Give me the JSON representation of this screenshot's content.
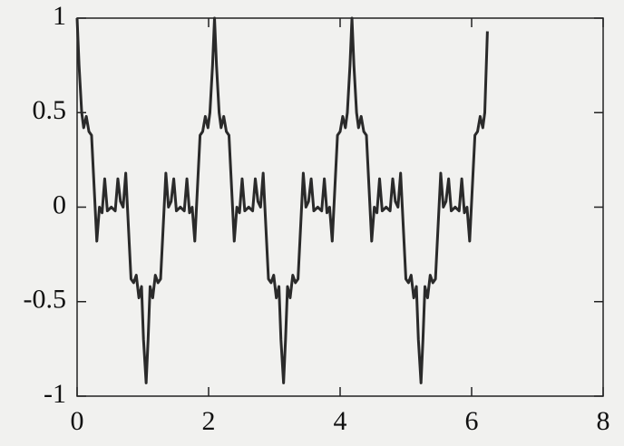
{
  "chart_data": {
    "type": "line",
    "x": [
      0,
      0.03,
      0.07,
      0.1,
      0.14,
      0.18,
      0.22,
      0.26,
      0.3,
      0.34,
      0.38,
      0.42,
      0.46,
      0.52,
      0.58,
      0.62,
      0.66,
      0.7,
      0.74,
      0.78,
      0.82,
      0.86,
      0.9,
      0.94,
      0.98,
      1.01,
      1.05,
      1.08,
      1.11,
      1.15,
      1.19,
      1.23,
      1.27,
      1.31,
      1.35,
      1.39,
      1.43,
      1.47,
      1.51,
      1.57,
      1.63,
      1.67,
      1.71,
      1.75,
      1.79,
      1.83,
      1.87,
      1.91,
      1.95,
      1.99,
      2.02,
      2.06,
      2.09,
      2.12,
      2.16,
      2.19,
      2.23,
      2.27,
      2.31,
      2.35,
      2.39,
      2.43,
      2.47,
      2.51,
      2.55,
      2.61,
      2.67,
      2.71,
      2.75,
      2.79,
      2.83,
      2.87,
      2.91,
      2.95,
      2.99,
      3.03,
      3.07,
      3.1,
      3.14,
      3.17,
      3.2,
      3.24,
      3.28,
      3.32,
      3.36,
      3.4,
      3.44,
      3.48,
      3.52,
      3.56,
      3.6,
      3.66,
      3.72,
      3.76,
      3.8,
      3.84,
      3.88,
      3.92,
      3.96,
      4.0,
      4.04,
      4.08,
      4.11,
      4.15,
      4.18,
      4.21,
      4.25,
      4.28,
      4.32,
      4.36,
      4.4,
      4.44,
      4.48,
      4.52,
      4.56,
      4.6,
      4.64,
      4.7,
      4.76,
      4.8,
      4.84,
      4.88,
      4.92,
      4.96,
      5.0,
      5.04,
      5.08,
      5.12,
      5.16,
      5.19,
      5.23,
      5.26,
      5.29,
      5.33,
      5.37,
      5.41,
      5.45,
      5.49,
      5.53,
      5.57,
      5.61,
      5.65,
      5.69,
      5.75,
      5.81,
      5.85,
      5.89,
      5.93,
      5.97,
      6.01,
      6.05,
      6.09,
      6.13,
      6.17,
      6.2,
      6.24
    ],
    "values": [
      1,
      0.75,
      0.5,
      0.42,
      0.48,
      0.4,
      0.38,
      0.1,
      -0.18,
      0,
      -0.03,
      0.15,
      -0.02,
      0,
      -0.02,
      0.15,
      0.03,
      0,
      0.18,
      -0.1,
      -0.38,
      -0.4,
      -0.36,
      -0.48,
      -0.42,
      -0.7,
      -0.93,
      -0.7,
      -0.42,
      -0.48,
      -0.36,
      -0.4,
      -0.38,
      -0.1,
      0.18,
      0,
      0.03,
      0.15,
      -0.02,
      0,
      -0.02,
      0.15,
      -0.03,
      0,
      -0.18,
      0.1,
      0.38,
      0.4,
      0.48,
      0.42,
      0.5,
      0.75,
      1,
      0.75,
      0.5,
      0.42,
      0.48,
      0.4,
      0.38,
      0.1,
      -0.18,
      0,
      -0.03,
      0.15,
      -0.02,
      0,
      -0.02,
      0.15,
      0.03,
      0,
      0.18,
      -0.1,
      -0.38,
      -0.4,
      -0.36,
      -0.48,
      -0.42,
      -0.7,
      -0.93,
      -0.7,
      -0.42,
      -0.48,
      -0.36,
      -0.4,
      -0.38,
      -0.1,
      0.18,
      0,
      0.03,
      0.15,
      -0.02,
      0,
      -0.02,
      0.15,
      -0.03,
      0,
      -0.18,
      0.1,
      0.38,
      0.4,
      0.48,
      0.42,
      0.5,
      0.75,
      1,
      0.75,
      0.5,
      0.42,
      0.48,
      0.4,
      0.38,
      0.1,
      -0.18,
      0,
      -0.03,
      0.15,
      -0.02,
      0,
      -0.02,
      0.15,
      0.03,
      0,
      0.18,
      -0.1,
      -0.38,
      -0.4,
      -0.36,
      -0.48,
      -0.42,
      -0.7,
      -0.93,
      -0.7,
      -0.42,
      -0.48,
      -0.36,
      -0.4,
      -0.38,
      -0.1,
      0.18,
      0,
      0.03,
      0.15,
      -0.02,
      0,
      -0.02,
      0.15,
      -0.03,
      0,
      -0.18,
      0.1,
      0.38,
      0.4,
      0.48,
      0.42,
      0.5,
      0.93
    ],
    "color": "#2a2a2a",
    "xlim": [
      0,
      8
    ],
    "xticks": [
      0,
      2,
      4,
      6,
      8
    ],
    "ylim": [
      -1,
      1
    ],
    "yticks": [
      -1,
      -0.5,
      0,
      0.5,
      1
    ]
  }
}
